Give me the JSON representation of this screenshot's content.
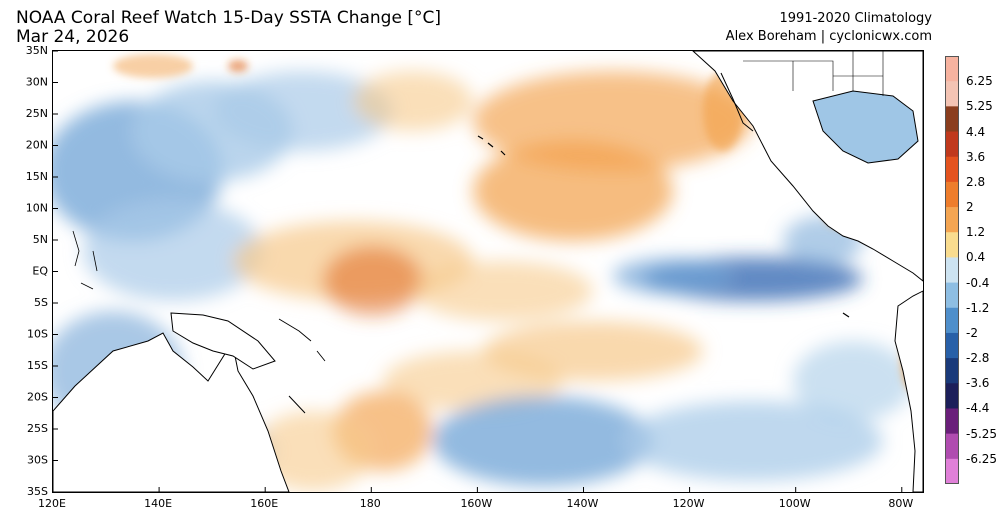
{
  "header": {
    "title": "NOAA Coral Reef Watch 15-Day SSTA Change [°C]",
    "date": "Mar 24, 2026",
    "climatology": "1991-2020 Climatology",
    "credit": "Alex Boreham | cyclonicwx.com"
  },
  "map": {
    "lon_range": [
      120,
      284
    ],
    "lat_range": [
      -35,
      35
    ],
    "lat_ticks": [
      "35N",
      "30N",
      "25N",
      "20N",
      "15N",
      "10N",
      "5N",
      "EQ",
      "5S",
      "10S",
      "15S",
      "20S",
      "25S",
      "30S",
      "35S"
    ],
    "lon_ticks": [
      "120E",
      "140E",
      "160E",
      "180",
      "160W",
      "140W",
      "120W",
      "100W",
      "80W"
    ],
    "colors": {
      "land": "#ffffff",
      "coast": "#000000",
      "neutral": "#ffffff"
    }
  },
  "colorbar": {
    "labels": [
      "6.25",
      "5.25",
      "4.4",
      "3.6",
      "2.8",
      "2",
      "1.2",
      "0.4",
      "-0.4",
      "-1.2",
      "-2",
      "-2.8",
      "-3.6",
      "-4.4",
      "-5.25",
      "-6.25"
    ],
    "colors": [
      "#f7b3a0",
      "#f4c4b4",
      "#8b3e1e",
      "#c0391d",
      "#e4531f",
      "#ee7d2c",
      "#f4a552",
      "#f9dc8f",
      "#cde3f1",
      "#8ebee3",
      "#4f8fcb",
      "#2860a8",
      "#1a3a7a",
      "#1c1f5a",
      "#6a1f7a",
      "#b04cb0",
      "#e080d8"
    ]
  }
}
